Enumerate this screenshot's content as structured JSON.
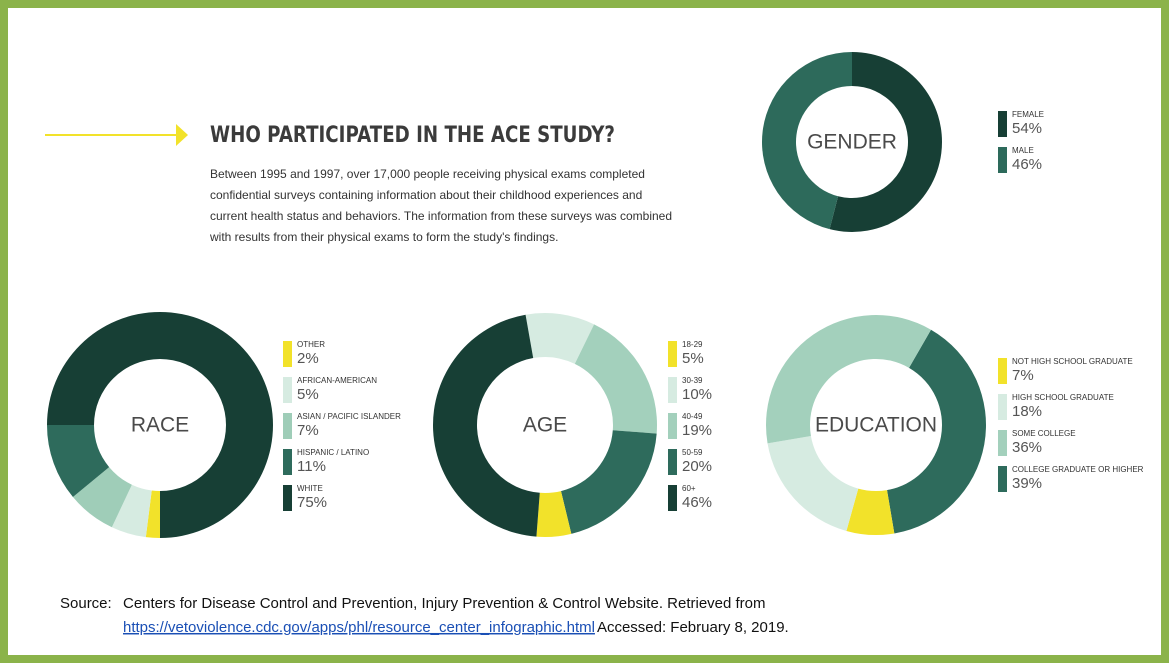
{
  "heading": "WHO PARTICIPATED IN THE ACE STUDY?",
  "description": [
    "Between 1995 and 1997, over 17,000 people receiving physical exams completed",
    "confidential surveys containing information about their childhood experiences and",
    "current health status and behaviors. The information from these surveys was combined",
    "with results from their physical exams to form the study's findings."
  ],
  "source": {
    "prefix": "Source:",
    "line1": "Centers for Disease Control and Prevention, Injury Prevention & Control Website. Retrieved from",
    "link": "https://vetoviolence.cdc.gov/apps/phl/resource_center_infographic.html",
    "line2": "Accessed: February 8, 2019."
  },
  "chart_data": [
    {
      "type": "pie",
      "donut": true,
      "title": "GENDER",
      "categories": [
        "FEMALE",
        "MALE"
      ],
      "values": [
        54,
        46
      ],
      "value_labels": [
        "54%",
        "46%"
      ],
      "colors": [
        "#173f35",
        "#2d6a5b"
      ]
    },
    {
      "type": "pie",
      "donut": true,
      "title": "RACE",
      "categories": [
        "OTHER",
        "AFRICAN-AMERICAN",
        "ASIAN / PACIFIC ISLANDER",
        "HISPANIC / LATINO",
        "WHITE"
      ],
      "values": [
        2,
        5,
        7,
        11,
        75
      ],
      "value_labels": [
        "2%",
        "5%",
        "7%",
        "11%",
        "75%"
      ],
      "colors": [
        "#f2e22a",
        "#d6ebe1",
        "#9fcdb8",
        "#2e6b5c",
        "#173f35"
      ]
    },
    {
      "type": "pie",
      "donut": true,
      "title": "AGE",
      "categories": [
        "18-29",
        "30-39",
        "40-49",
        "50-59",
        "60+"
      ],
      "values": [
        5,
        10,
        19,
        20,
        46
      ],
      "value_labels": [
        "5%",
        "10%",
        "19%",
        "20%",
        "46%"
      ],
      "colors": [
        "#f2e22a",
        "#d6ebe1",
        "#a3d0bc",
        "#2e6b5c",
        "#173f35"
      ]
    },
    {
      "type": "pie",
      "donut": true,
      "title": "EDUCATION",
      "categories": [
        "NOT HIGH SCHOOL GRADUATE",
        "HIGH SCHOOL GRADUATE",
        "SOME COLLEGE",
        "COLLEGE GRADUATE OR HIGHER"
      ],
      "values": [
        7,
        18,
        36,
        39
      ],
      "value_labels": [
        "7%",
        "18%",
        "36%",
        "39%"
      ],
      "colors": [
        "#f2e22a",
        "#d6ebe1",
        "#a3d0bc",
        "#2e6b5c"
      ]
    }
  ]
}
